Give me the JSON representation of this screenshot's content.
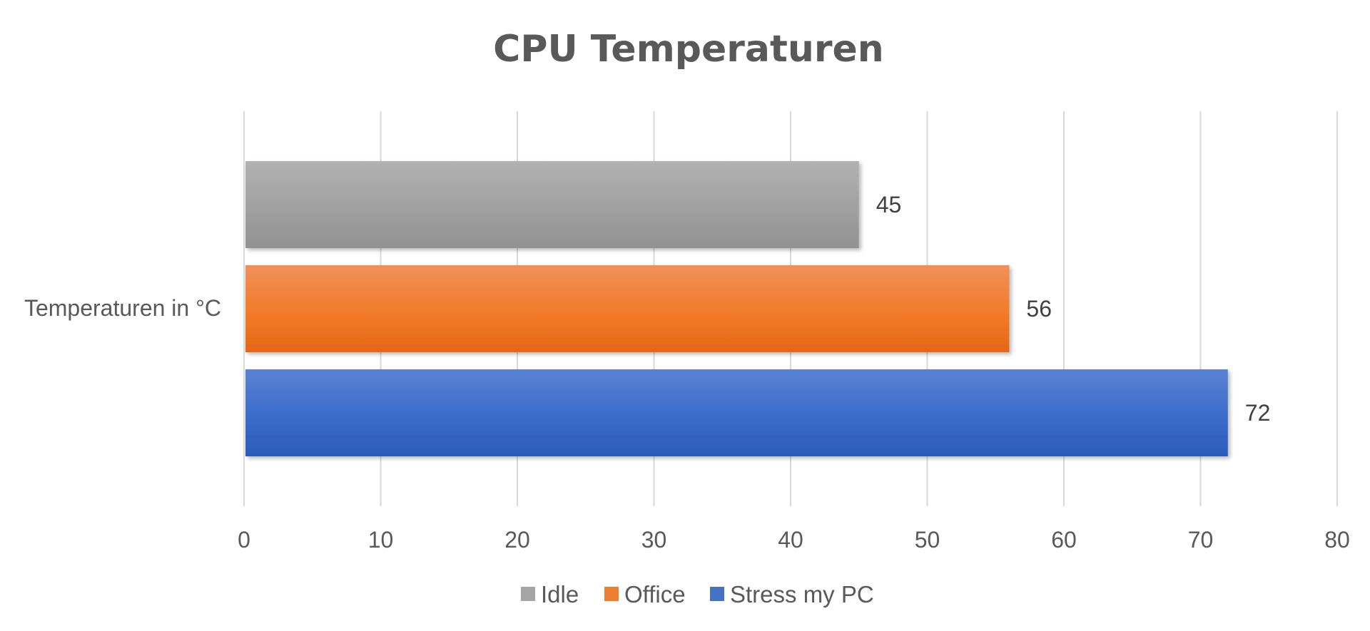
{
  "chart_data": {
    "type": "bar",
    "orientation": "horizontal",
    "title": "CPU Temperaturen",
    "categories": [
      "Temperaturen in °C"
    ],
    "series": [
      {
        "name": "Idle",
        "values": [
          45
        ],
        "color": "#a5a5a5"
      },
      {
        "name": "Office",
        "values": [
          56
        ],
        "color": "#ed7d31"
      },
      {
        "name": "Stress my PC",
        "values": [
          72
        ],
        "color": "#4472c4"
      }
    ],
    "xlim": [
      0,
      80
    ],
    "x_ticks": [
      "0",
      "10",
      "20",
      "30",
      "40",
      "50",
      "60",
      "70",
      "80"
    ],
    "data_labels": [
      "45",
      "56",
      "72"
    ],
    "grid": true,
    "legend_position": "bottom"
  }
}
